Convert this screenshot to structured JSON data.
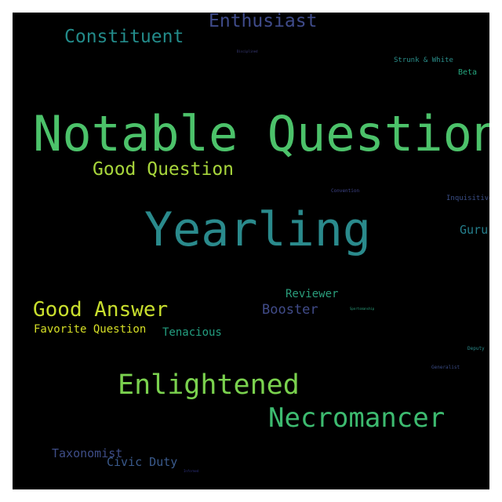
{
  "words": [
    {
      "text": "Notable Question",
      "color": "#4cc26a"
    },
    {
      "text": "Yearling",
      "color": "#2a8a8c"
    },
    {
      "text": "Enlightened",
      "color": "#7ad14e"
    },
    {
      "text": "Necromancer",
      "color": "#3dbb70"
    },
    {
      "text": "Good Answer",
      "color": "#c9df2e"
    },
    {
      "text": "Good Question",
      "color": "#a8d63c"
    },
    {
      "text": "Constituent",
      "color": "#238b8a"
    },
    {
      "text": "Enthusiast",
      "color": "#3f4b8a"
    },
    {
      "text": "Booster",
      "color": "#414c8a"
    },
    {
      "text": "Reviewer",
      "color": "#2a9e7c"
    },
    {
      "text": "Tenacious",
      "color": "#239e80"
    },
    {
      "text": "Favorite Question",
      "color": "#d6df26"
    },
    {
      "text": "Guru",
      "color": "#257f8d"
    },
    {
      "text": "Taxonomist",
      "color": "#3e4d87"
    },
    {
      "text": "Civic Duty",
      "color": "#3a5a8c"
    },
    {
      "text": "Strunk & White",
      "color": "#2a8e8a"
    },
    {
      "text": "Beta",
      "color": "#25a67e"
    },
    {
      "text": "Inquisitive",
      "color": "#3a4e86"
    },
    {
      "text": "Convention",
      "color": "#3e4488"
    },
    {
      "text": "Deputy",
      "color": "#2a8a8a"
    },
    {
      "text": "Generalist",
      "color": "#3a4c86"
    },
    {
      "text": "Sportsmanship",
      "color": "#2aa07c"
    },
    {
      "text": "Disciplined",
      "color": "#3e3f82"
    },
    {
      "text": "Informed",
      "color": "#2c2f7a"
    }
  ]
}
